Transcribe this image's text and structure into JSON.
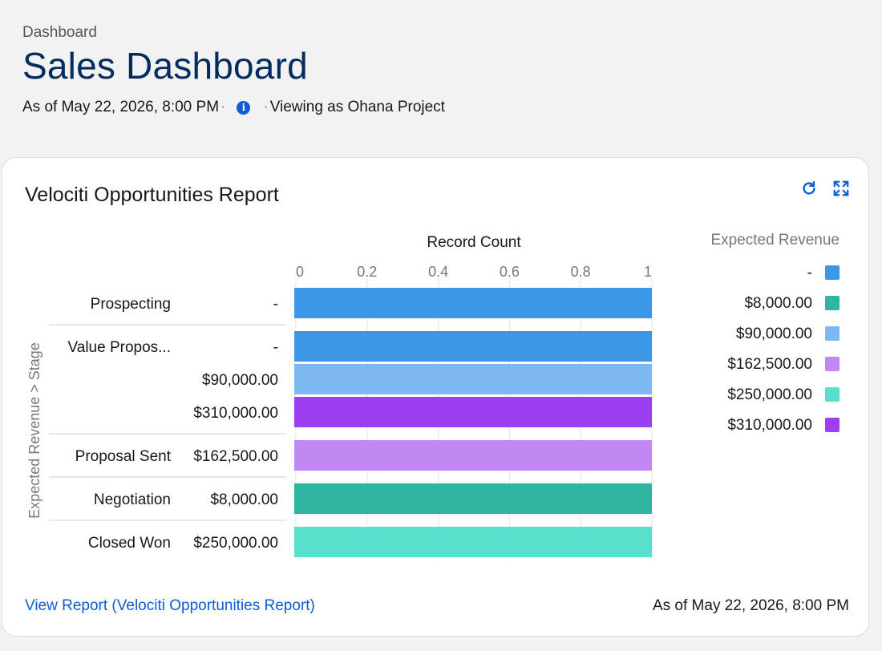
{
  "header": {
    "breadcrumb": "Dashboard",
    "title": "Sales Dashboard",
    "as_of": "As of May 22, 2026, 8:00 PM",
    "viewing_as": "Viewing as Ohana Project"
  },
  "card": {
    "title": "Velociti Opportunities Report",
    "view_report_link": "View Report (Velociti Opportunities Report)",
    "as_of": "As of May 22, 2026, 8:00 PM",
    "icons": [
      "refresh-icon",
      "expand-icon"
    ]
  },
  "chart_data": {
    "type": "bar",
    "orientation": "horizontal",
    "title": "",
    "xlabel": "Record Count",
    "ylabel": "Expected Revenue  >  Stage",
    "xlim": [
      0,
      1
    ],
    "x_ticks": [
      "0",
      "0.2",
      "0.4",
      "0.6",
      "0.8",
      "1"
    ],
    "legend_title": "Expected Revenue",
    "legend_placement": "right",
    "legend": [
      {
        "label": "-",
        "color": "#3c97e6"
      },
      {
        "label": "$8,000.00",
        "color": "#2fb5a2"
      },
      {
        "label": "$90,000.00",
        "color": "#7db8f0"
      },
      {
        "label": "$162,500.00",
        "color": "#c288f2"
      },
      {
        "label": "$250,000.00",
        "color": "#58e0cc"
      },
      {
        "label": "$310,000.00",
        "color": "#9b3ff0"
      }
    ],
    "groups": [
      {
        "stage": "Prospecting",
        "bars": [
          {
            "revenue": "-",
            "value": 1
          }
        ]
      },
      {
        "stage": "Value Propos...",
        "bars": [
          {
            "revenue": "-",
            "value": 1
          },
          {
            "revenue": "$90,000.00",
            "value": 1
          },
          {
            "revenue": "$310,000.00",
            "value": 1
          }
        ]
      },
      {
        "stage": "Proposal Sent",
        "bars": [
          {
            "revenue": "$162,500.00",
            "value": 1
          }
        ]
      },
      {
        "stage": "Negotiation",
        "bars": [
          {
            "revenue": "$8,000.00",
            "value": 1
          }
        ]
      },
      {
        "stage": "Closed Won",
        "bars": [
          {
            "revenue": "$250,000.00",
            "value": 1
          }
        ]
      }
    ]
  }
}
